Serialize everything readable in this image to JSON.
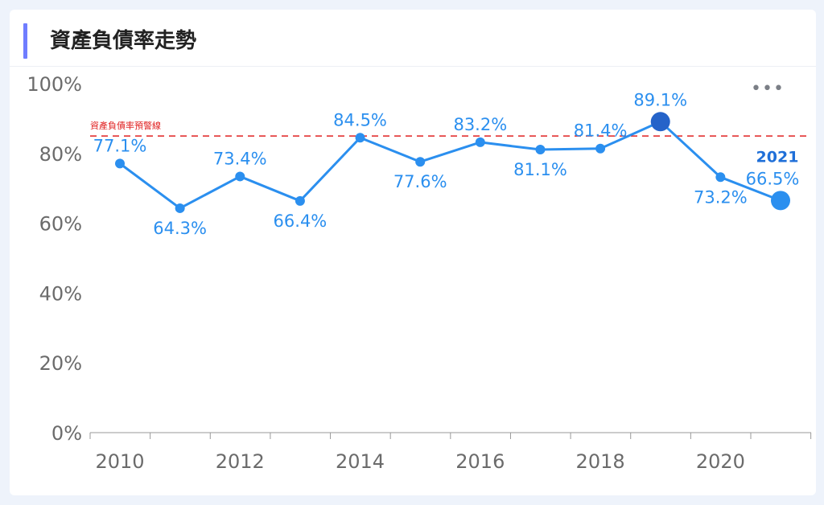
{
  "header": {
    "title": "資產負債率走勢"
  },
  "toolbar": {
    "more_label": "•••"
  },
  "chart_data": {
    "type": "line",
    "title": "資產負債率走勢",
    "x": [
      2010,
      2011,
      2012,
      2013,
      2014,
      2015,
      2016,
      2017,
      2018,
      2019,
      2020,
      2021
    ],
    "series": [
      {
        "values": [
          77.1,
          64.3,
          73.4,
          66.4,
          84.5,
          77.6,
          83.2,
          81.1,
          81.4,
          89.1,
          73.2,
          66.5
        ]
      }
    ],
    "value_labels": [
      "77.1%",
      "64.3%",
      "73.4%",
      "66.4%",
      "84.5%",
      "77.6%",
      "83.2%",
      "81.1%",
      "81.4%",
      "89.1%",
      "73.2%",
      "66.5%"
    ],
    "y_ticks": [
      "0%",
      "20%",
      "40%",
      "60%",
      "80%",
      "100%"
    ],
    "x_ticks": [
      "2010",
      "2012",
      "2014",
      "2016",
      "2018",
      "2020"
    ],
    "ylim": [
      0,
      100
    ],
    "xlim": [
      2010,
      2021
    ],
    "warning_line": {
      "value": 85,
      "label": "資產負債率預警線",
      "color": "#e02020"
    },
    "highlight_label": "2021",
    "line_color": "#2b8fef",
    "emphasis_color": "#2563c9",
    "grid": false
  }
}
